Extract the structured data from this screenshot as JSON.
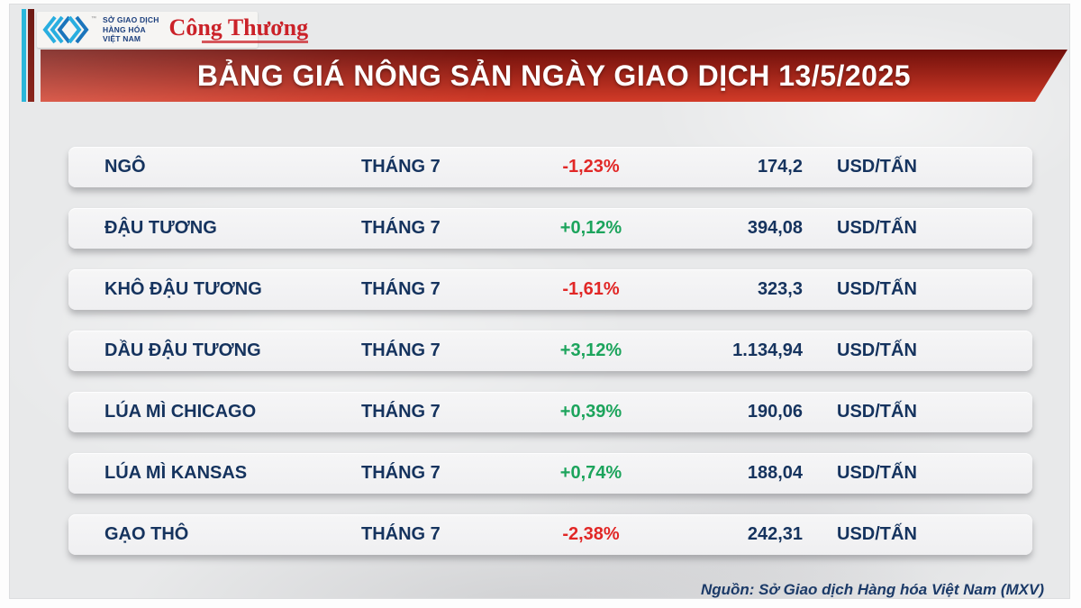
{
  "branding": {
    "mxv_name_lines": [
      "SỞ GIAO DỊCH",
      "HÀNG HÓA",
      "VIỆT NAM"
    ],
    "trademark": "™",
    "newspaper_name": "Công Thương"
  },
  "header": {
    "title": "BẢNG GIÁ NÔNG SẢN NGÀY GIAO DỊCH 13/5/2025"
  },
  "table": {
    "rows": [
      {
        "name": "NGÔ",
        "month": "THÁNG 7",
        "change": "-1,23%",
        "direction": "down",
        "price": "174,2",
        "unit": "USD/TẤN"
      },
      {
        "name": "ĐẬU TƯƠNG",
        "month": "THÁNG 7",
        "change": "+0,12%",
        "direction": "up",
        "price": "394,08",
        "unit": "USD/TẤN"
      },
      {
        "name": "KHÔ ĐẬU TƯƠNG",
        "month": "THÁNG 7",
        "change": "-1,61%",
        "direction": "down",
        "price": "323,3",
        "unit": "USD/TẤN"
      },
      {
        "name": "DẦU ĐẬU TƯƠNG",
        "month": "THÁNG 7",
        "change": "+3,12%",
        "direction": "up",
        "price": "1.134,94",
        "unit": "USD/TẤN"
      },
      {
        "name": "LÚA MÌ CHICAGO",
        "month": "THÁNG 7",
        "change": "+0,39%",
        "direction": "up",
        "price": "190,06",
        "unit": "USD/TẤN"
      },
      {
        "name": "LÚA MÌ KANSAS",
        "month": "THÁNG 7",
        "change": "+0,74%",
        "direction": "up",
        "price": "188,04",
        "unit": "USD/TẤN"
      },
      {
        "name": "GẠO THÔ",
        "month": "THÁNG 7",
        "change": "-2,38%",
        "direction": "down",
        "price": "242,31",
        "unit": "USD/TẤN"
      }
    ]
  },
  "footer": {
    "source": "Nguồn: Sở Giao dịch Hàng hóa Việt Nam (MXV)"
  },
  "colors": {
    "banner_red": "#d23b28",
    "navy": "#15335e",
    "up_green": "#1ca45c",
    "down_red": "#e12726",
    "cyan_bar": "#2bb6da",
    "maroon_bar": "#6e1a14",
    "mxv_cyan": "#29aee0",
    "mxv_blue": "#1b75bc",
    "congthuong_red": "#cb2229"
  },
  "chart_data": {
    "type": "table",
    "title": "BẢNG GIÁ NÔNG SẢN NGÀY GIAO DỊCH 13/5/2025",
    "rows": [
      [
        "NGÔ",
        "THÁNG 7",
        "-1,23%",
        "174,2",
        "USD/TẤN"
      ],
      [
        "ĐẬU TƯƠNG",
        "THÁNG 7",
        "+0,12%",
        "394,08",
        "USD/TẤN"
      ],
      [
        "KHÔ ĐẬU TƯƠNG",
        "THÁNG 7",
        "-1,61%",
        "323,3",
        "USD/TẤN"
      ],
      [
        "DẦU ĐẬU TƯƠNG",
        "THÁNG 7",
        "+3,12%",
        "1.134,94",
        "USD/TẤN"
      ],
      [
        "LÚA MÌ CHICAGO",
        "THÁNG 7",
        "+0,39%",
        "190,06",
        "USD/TẤN"
      ],
      [
        "LÚA MÌ KANSAS",
        "THÁNG 7",
        "+0,74%",
        "188,04",
        "USD/TẤN"
      ],
      [
        "GẠO THÔ",
        "THÁNG 7",
        "-2,38%",
        "242,31",
        "USD/TẤN"
      ]
    ],
    "change_values_percent": [
      -1.23,
      0.12,
      -1.61,
      3.12,
      0.39,
      0.74,
      -2.38
    ],
    "price_values_usd_per_ton": [
      174.2,
      394.08,
      323.3,
      1134.94,
      190.06,
      188.04,
      242.31
    ],
    "source": "Nguồn: Sở Giao dịch Hàng hóa Việt Nam (MXV)"
  }
}
